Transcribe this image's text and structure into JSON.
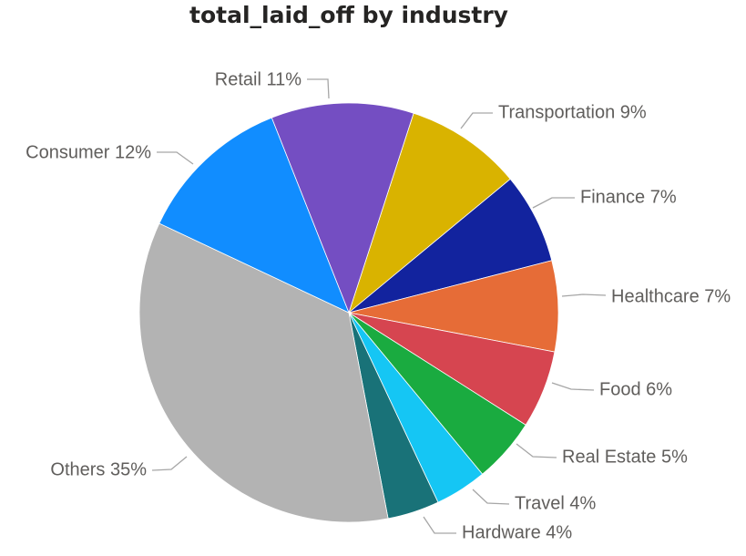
{
  "chart_data": {
    "type": "pie",
    "title": "total_laid_off by industry",
    "slices": [
      {
        "label": "Transportation",
        "percent": 9,
        "display": "Transportation 9%",
        "color": "#D9B300"
      },
      {
        "label": "Finance",
        "percent": 7,
        "display": "Finance 7%",
        "color": "#12239E"
      },
      {
        "label": "Healthcare",
        "percent": 7,
        "display": "Healthcare 7%",
        "color": "#E66C37"
      },
      {
        "label": "Food",
        "percent": 6,
        "display": "Food 6%",
        "color": "#D64550"
      },
      {
        "label": "Real Estate",
        "percent": 5,
        "display": "Real Estate 5%",
        "color": "#1AAB40"
      },
      {
        "label": "Travel",
        "percent": 4,
        "display": "Travel 4%",
        "color": "#15C6F4"
      },
      {
        "label": "Hardware",
        "percent": 4,
        "display": "Hardware 4%",
        "color": "#197278"
      },
      {
        "label": "Others",
        "percent": 35,
        "display": "Others 35%",
        "color": "#B3B3B3"
      },
      {
        "label": "Consumer",
        "percent": 12,
        "display": "Consumer 12%",
        "color": "#118DFF"
      },
      {
        "label": "Retail",
        "percent": 11,
        "display": "Retail 11%",
        "color": "#744EC2"
      }
    ]
  }
}
